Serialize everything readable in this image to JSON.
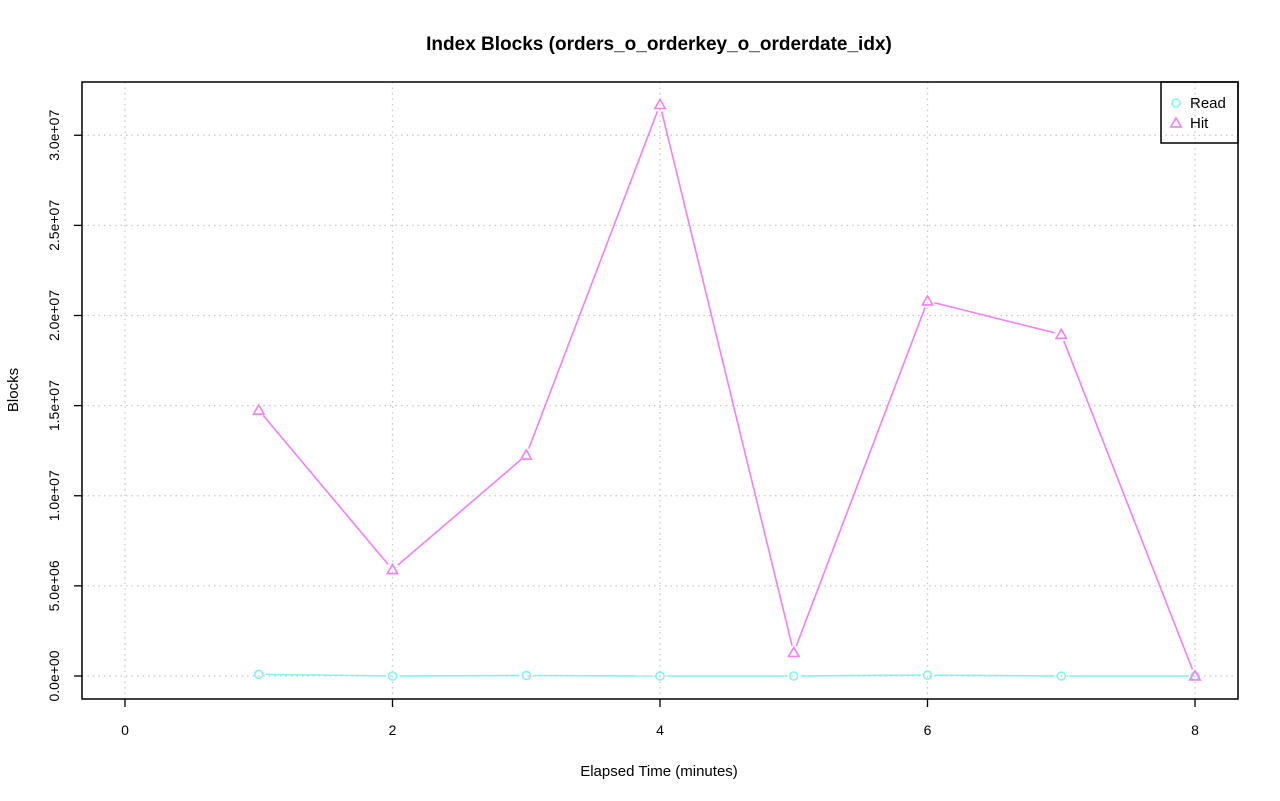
{
  "chart_data": {
    "type": "line",
    "title": "Index Blocks (orders_o_orderkey_o_orderdate_idx)",
    "xlabel": "Elapsed Time (minutes)",
    "ylabel": "Blocks",
    "xlim": [
      0,
      8
    ],
    "ylim": [
      0,
      31700000
    ],
    "x_ticks": [
      0,
      2,
      4,
      6,
      8
    ],
    "x_tick_labels": [
      "0",
      "2",
      "4",
      "6",
      "8"
    ],
    "y_ticks": [
      0,
      5000000,
      10000000,
      15000000,
      20000000,
      25000000,
      30000000
    ],
    "y_tick_labels": [
      "0.0e+00",
      "5.0e+06",
      "1.0e+07",
      "1.5e+07",
      "2.0e+07",
      "2.5e+07",
      "3.0e+07"
    ],
    "grid": true,
    "legend_position": "top-right",
    "x": [
      1,
      2,
      3,
      4,
      5,
      6,
      7,
      8
    ],
    "series": [
      {
        "name": "Read",
        "marker": "circle",
        "color": "#7ff5f5",
        "values": [
          90000,
          0,
          30000,
          0,
          0,
          50000,
          0,
          0
        ]
      },
      {
        "name": "Hit",
        "marker": "triangle",
        "color": "#f57ff5",
        "values": [
          14750000,
          5900000,
          12250000,
          31700000,
          1300000,
          20800000,
          18950000,
          0
        ]
      }
    ]
  }
}
